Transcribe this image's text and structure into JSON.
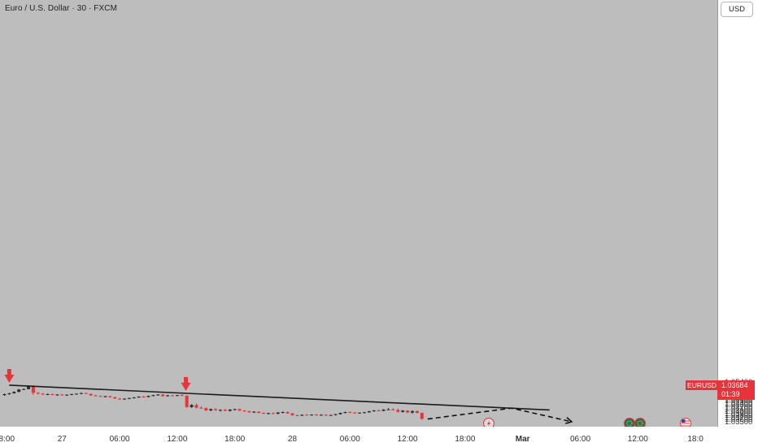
{
  "title": "Euro / U.S. Dollar · 30 · FXCM",
  "currency_button": "USD",
  "symbol_label": "EURUSD",
  "price_label": {
    "price": "1.03684",
    "countdown": "01:39"
  },
  "colors": {
    "up": "#2b2b2b",
    "down": "#e8333b",
    "background": "#bdbdbd",
    "trendline": "#1c1c1c"
  },
  "event_icons": [
    "flash-icon",
    "eu-flag-icon",
    "eu-flag-icon",
    "us-flag-icon"
  ],
  "chart_data": {
    "type": "candlestick",
    "title": "Euro / U.S. Dollar · 30 · FXCM",
    "interval": "30",
    "y_ticks": [
      "1.03500",
      "1.03600",
      "1.03700",
      "1.03800",
      "1.03900",
      "1.04000",
      "1.04100",
      "1.04200",
      "1.04300",
      "1.04400",
      "1.04500",
      "1.04600",
      "1.04700",
      "1.04800",
      "1.04900",
      "1.05000",
      "1.05100",
      "1.05200",
      "1.05300",
      "1.05400"
    ],
    "x_ticks": [
      {
        "t": 0,
        "label": "18:00"
      },
      {
        "t": 12,
        "label": "27"
      },
      {
        "t": 24,
        "label": "06:00"
      },
      {
        "t": 36,
        "label": "12:00"
      },
      {
        "t": 48,
        "label": "18:00"
      },
      {
        "t": 60,
        "label": "28"
      },
      {
        "t": 72,
        "label": "06:00"
      },
      {
        "t": 84,
        "label": "12:00"
      },
      {
        "t": 96,
        "label": "18:00"
      },
      {
        "t": 108,
        "label": "Mar",
        "bold": true
      },
      {
        "t": 120,
        "label": "06:00"
      },
      {
        "t": 132,
        "label": "12:00"
      },
      {
        "t": 144,
        "label": "18:0"
      }
    ],
    "ylim": [
      1.03458,
      1.05436
    ],
    "candles": [
      [
        1.0481,
        1.0488,
        1.0478,
        1.0486
      ],
      [
        1.0486,
        1.0492,
        1.0482,
        1.049
      ],
      [
        1.049,
        1.0499,
        1.0488,
        1.0497
      ],
      [
        1.0497,
        1.051,
        1.0494,
        1.0508
      ],
      [
        1.0508,
        1.0513,
        1.0505,
        1.051
      ],
      [
        1.051,
        1.0526,
        1.0508,
        1.0525
      ],
      [
        1.0525,
        1.0528,
        1.0483,
        1.0492
      ],
      [
        1.0492,
        1.0496,
        1.0484,
        1.0488
      ],
      [
        1.0488,
        1.0491,
        1.0481,
        1.0484
      ],
      [
        1.0484,
        1.0489,
        1.0481,
        1.0486
      ],
      [
        1.0486,
        1.0488,
        1.048,
        1.0482
      ],
      [
        1.0482,
        1.0486,
        1.0478,
        1.0484
      ],
      [
        1.0484,
        1.0487,
        1.0479,
        1.048
      ],
      [
        1.048,
        1.0485,
        1.0478,
        1.0483
      ],
      [
        1.0483,
        1.0488,
        1.0481,
        1.0486
      ],
      [
        1.0486,
        1.049,
        1.0483,
        1.0488
      ],
      [
        1.0488,
        1.0493,
        1.0485,
        1.0491
      ],
      [
        1.0491,
        1.0492,
        1.0486,
        1.0487
      ],
      [
        1.0487,
        1.0489,
        1.0478,
        1.048
      ],
      [
        1.048,
        1.0483,
        1.0475,
        1.0477
      ],
      [
        1.0477,
        1.048,
        1.0472,
        1.0474
      ],
      [
        1.0474,
        1.0478,
        1.047,
        1.0476
      ],
      [
        1.0476,
        1.0478,
        1.0469,
        1.0471
      ],
      [
        1.0471,
        1.0473,
        1.0463,
        1.0465
      ],
      [
        1.0465,
        1.0467,
        1.0458,
        1.0461
      ],
      [
        1.0461,
        1.0466,
        1.0459,
        1.0464
      ],
      [
        1.0464,
        1.0469,
        1.0462,
        1.0467
      ],
      [
        1.0467,
        1.0472,
        1.0465,
        1.047
      ],
      [
        1.047,
        1.0476,
        1.0468,
        1.0474
      ],
      [
        1.0474,
        1.0478,
        1.047,
        1.0472
      ],
      [
        1.0472,
        1.0479,
        1.047,
        1.0477
      ],
      [
        1.0477,
        1.0483,
        1.0475,
        1.0481
      ],
      [
        1.0481,
        1.0486,
        1.0478,
        1.0484
      ],
      [
        1.0484,
        1.0487,
        1.0474,
        1.0476
      ],
      [
        1.0476,
        1.0482,
        1.0474,
        1.048
      ],
      [
        1.048,
        1.0483,
        1.0476,
        1.0479
      ],
      [
        1.0479,
        1.0482,
        1.0476,
        1.0481
      ],
      [
        1.0481,
        1.0486,
        1.0479,
        1.0478
      ],
      [
        1.0478,
        1.0481,
        1.0421,
        1.0424
      ],
      [
        1.0424,
        1.0438,
        1.042,
        1.0434
      ],
      [
        1.0434,
        1.0441,
        1.0418,
        1.0421
      ],
      [
        1.0421,
        1.0428,
        1.0415,
        1.0419
      ],
      [
        1.0419,
        1.0422,
        1.0405,
        1.0408
      ],
      [
        1.0408,
        1.0417,
        1.0404,
        1.0414
      ],
      [
        1.0414,
        1.0418,
        1.0406,
        1.0409
      ],
      [
        1.0409,
        1.0413,
        1.0402,
        1.0411
      ],
      [
        1.0411,
        1.0415,
        1.0404,
        1.0406
      ],
      [
        1.0406,
        1.0414,
        1.0403,
        1.0412
      ],
      [
        1.0412,
        1.0416,
        1.0408,
        1.0414
      ],
      [
        1.0414,
        1.0417,
        1.0405,
        1.0407
      ],
      [
        1.0407,
        1.041,
        1.0401,
        1.0404
      ],
      [
        1.0404,
        1.0407,
        1.0397,
        1.0399
      ],
      [
        1.0399,
        1.0404,
        1.0396,
        1.0402
      ],
      [
        1.0402,
        1.0404,
        1.0394,
        1.0396
      ],
      [
        1.0396,
        1.0399,
        1.0391,
        1.0393
      ],
      [
        1.0393,
        1.0397,
        1.0389,
        1.0395
      ],
      [
        1.0395,
        1.0398,
        1.039,
        1.0392
      ],
      [
        1.0392,
        1.04,
        1.039,
        1.0398
      ],
      [
        1.0398,
        1.0403,
        1.0394,
        1.04
      ],
      [
        1.04,
        1.0404,
        1.0392,
        1.0394
      ],
      [
        1.0394,
        1.0396,
        1.0382,
        1.0385
      ],
      [
        1.0385,
        1.0388,
        1.038,
        1.0383
      ],
      [
        1.0383,
        1.0389,
        1.0381,
        1.0387
      ],
      [
        1.0387,
        1.039,
        1.0384,
        1.0386
      ],
      [
        1.0386,
        1.0389,
        1.0383,
        1.0388
      ],
      [
        1.0388,
        1.0391,
        1.0384,
        1.0385
      ],
      [
        1.0385,
        1.039,
        1.0383,
        1.0387
      ],
      [
        1.0387,
        1.0389,
        1.0382,
        1.0384
      ],
      [
        1.0384,
        1.0388,
        1.0382,
        1.0386
      ],
      [
        1.0386,
        1.0392,
        1.0384,
        1.039
      ],
      [
        1.039,
        1.0398,
        1.0388,
        1.0396
      ],
      [
        1.0396,
        1.0402,
        1.0393,
        1.04
      ],
      [
        1.04,
        1.0404,
        1.0396,
        1.0398
      ],
      [
        1.0398,
        1.04,
        1.0392,
        1.0394
      ],
      [
        1.0394,
        1.0399,
        1.0393,
        1.0397
      ],
      [
        1.0397,
        1.0401,
        1.0394,
        1.0399
      ],
      [
        1.0399,
        1.0406,
        1.0397,
        1.0404
      ],
      [
        1.0404,
        1.041,
        1.0402,
        1.0408
      ],
      [
        1.0408,
        1.0413,
        1.0404,
        1.0406
      ],
      [
        1.0406,
        1.0414,
        1.0404,
        1.0412
      ],
      [
        1.0412,
        1.0419,
        1.041,
        1.0413
      ],
      [
        1.0413,
        1.0419,
        1.0408,
        1.041
      ],
      [
        1.041,
        1.0417,
        1.0398,
        1.0401
      ],
      [
        1.0401,
        1.041,
        1.0398,
        1.0407
      ],
      [
        1.0407,
        1.0409,
        1.0396,
        1.0398
      ],
      [
        1.0398,
        1.0407,
        1.0392,
        1.0405
      ],
      [
        1.0405,
        1.0407,
        1.0394,
        1.0396
      ],
      [
        1.0396,
        1.0398,
        1.0364,
        1.0368
      ]
    ],
    "trendline": {
      "start": {
        "t": 1.0,
        "price": 1.05286
      },
      "end": {
        "t": 113.6,
        "price": 1.04102
      }
    },
    "arrow_markers": [
      {
        "t": 1.0,
        "price": 1.05286
      },
      {
        "t": 37.8,
        "price": 1.049
      }
    ],
    "projection": [
      {
        "t": 88.2,
        "price": 1.0367
      },
      {
        "t": 105.7,
        "price": 1.0419
      },
      {
        "t": 118.2,
        "price": 1.03538
      }
    ]
  }
}
